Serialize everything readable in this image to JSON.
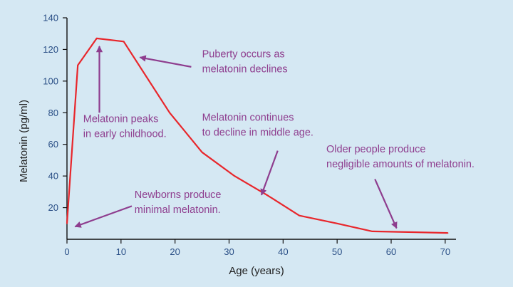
{
  "chart_data": {
    "type": "line",
    "xlabel": "Age (years)",
    "ylabel": "Melatonin (pg/ml)",
    "xlim": [
      0,
      72
    ],
    "ylim": [
      0,
      140
    ],
    "x_ticks": [
      0,
      10,
      20,
      30,
      40,
      50,
      60,
      70
    ],
    "y_ticks": [
      20,
      40,
      60,
      80,
      100,
      120,
      140
    ],
    "grid": false,
    "line_color": "#e8262b",
    "annotation_color": "#8e3d8e",
    "series": [
      {
        "x": [
          0,
          2,
          5.5,
          10.5,
          19,
          25,
          31,
          37,
          43,
          50,
          56.5,
          64,
          70.5
        ],
        "values": [
          10,
          110,
          127,
          125,
          80,
          55,
          40,
          28,
          15,
          10,
          5,
          4.5,
          4
        ]
      }
    ],
    "annotations": [
      {
        "lines": [
          "Puberty occurs as",
          "melatonin declines"
        ],
        "x": 25,
        "y": 115
      },
      {
        "lines": [
          "Melatonin peaks",
          "in early childhood."
        ],
        "x": 3,
        "y": 74
      },
      {
        "lines": [
          "Melatonin continues",
          "to decline in middle age."
        ],
        "x": 25,
        "y": 75
      },
      {
        "lines": [
          "Older people produce",
          "negligible amounts of melatonin."
        ],
        "x": 48,
        "y": 55
      },
      {
        "lines": [
          "Newborns produce",
          "minimal melatonin."
        ],
        "x": 12.5,
        "y": 26
      }
    ],
    "arrows": [
      {
        "from": [
          23,
          109
        ],
        "to": [
          13.5,
          115
        ]
      },
      {
        "from": [
          6,
          80
        ],
        "to": [
          6,
          122
        ]
      },
      {
        "from": [
          39,
          56
        ],
        "to": [
          36,
          28
        ]
      },
      {
        "from": [
          57,
          38
        ],
        "to": [
          61,
          7
        ]
      },
      {
        "from": [
          12,
          21
        ],
        "to": [
          1.5,
          8
        ]
      }
    ]
  }
}
